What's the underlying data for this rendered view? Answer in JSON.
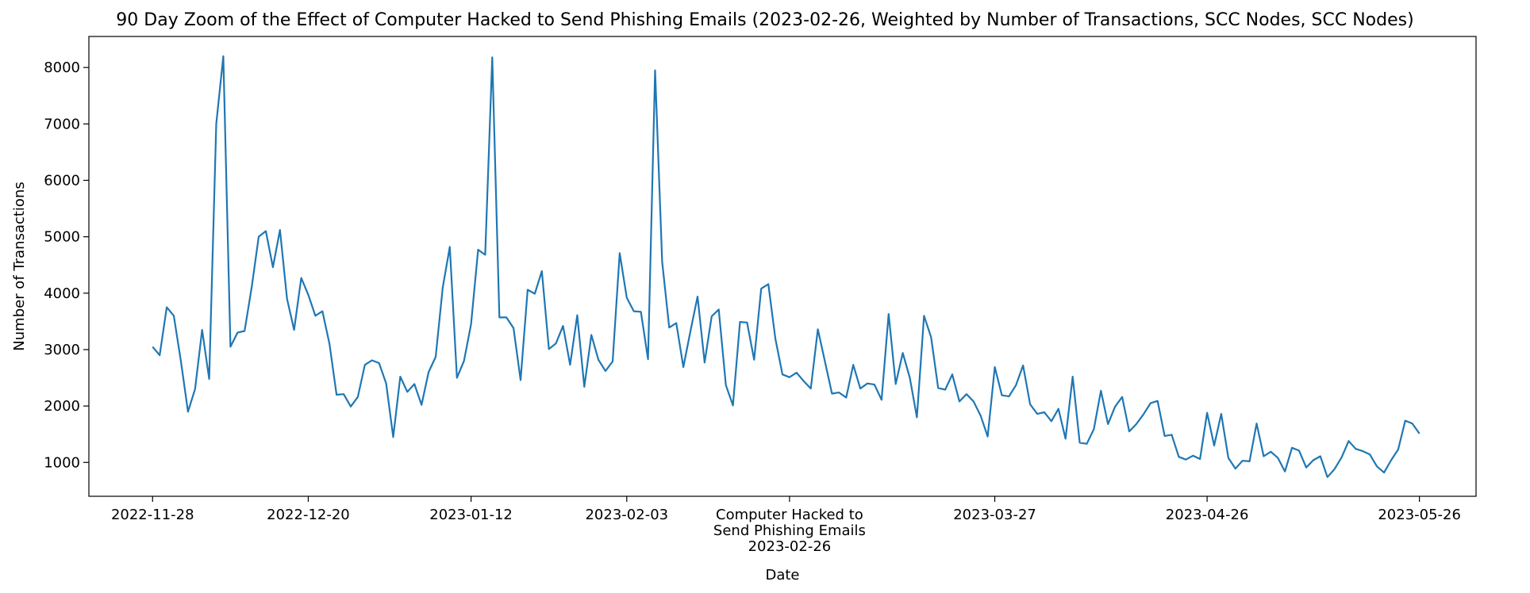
{
  "chart_data": {
    "type": "line",
    "title": "90 Day Zoom of the Effect of Computer Hacked to Send Phishing Emails (2023-02-26, Weighted by Number of Transactions, SCC Nodes, SCC Nodes)",
    "xlabel": "Date",
    "ylabel": "Number of Transactions",
    "x_tick_labels": [
      "2022-11-28",
      "2022-12-20",
      "2023-01-12",
      "2023-02-03",
      "2023-03-27",
      "2023-04-26",
      "2023-05-26"
    ],
    "event_tick_lines": [
      "Computer Hacked to",
      "Send Phishing Emails",
      "2023-02-26"
    ],
    "y_ticks": [
      1000,
      2000,
      3000,
      4000,
      5000,
      6000,
      7000,
      8000
    ],
    "ylim": [
      400,
      8550
    ],
    "xlim": [
      "2022-11-19",
      "2023-06-03"
    ],
    "grid": false,
    "line_color": "#1f77b4",
    "series": [
      {
        "x_start": "2022-11-28",
        "x_end": "2023-05-26",
        "values": [
          3050,
          2900,
          3750,
          3600,
          2800,
          1900,
          2300,
          3350,
          2480,
          7000,
          8200,
          3050,
          3300,
          3330,
          4100,
          5000,
          5100,
          4460,
          5120,
          3900,
          3350,
          4270,
          3970,
          3600,
          3680,
          3100,
          2200,
          2210,
          1990,
          2160,
          2730,
          2810,
          2760,
          2400,
          1450,
          2520,
          2250,
          2390,
          2020,
          2600,
          2870,
          4100,
          4820,
          2500,
          2800,
          3450,
          4770,
          4680,
          8180,
          3570,
          3570,
          3380,
          2460,
          4060,
          3990,
          4390,
          3010,
          3110,
          3420,
          2730,
          3610,
          2340,
          3260,
          2820,
          2620,
          2790,
          4710,
          3920,
          3680,
          3670,
          2830,
          7950,
          4560,
          3390,
          3470,
          2690,
          3330,
          3940,
          2770,
          3590,
          3710,
          2370,
          2010,
          3490,
          3480,
          2820,
          4080,
          4160,
          3190,
          2560,
          2510,
          2590,
          2440,
          2310,
          3360,
          2790,
          2220,
          2240,
          2150,
          2730,
          2310,
          2400,
          2380,
          2110,
          3630,
          2390,
          2940,
          2500,
          1800,
          3600,
          3220,
          2320,
          2290,
          2560,
          2080,
          2210,
          2080,
          1830,
          1460,
          2690,
          2190,
          2170,
          2370,
          2720,
          2030,
          1860,
          1890,
          1730,
          1950,
          1420,
          2520,
          1350,
          1330,
          1590,
          2270,
          1680,
          1990,
          2160,
          1550,
          1680,
          1850,
          2050,
          2090,
          1470,
          1490,
          1100,
          1050,
          1120,
          1060,
          1880,
          1300,
          1860,
          1080,
          890,
          1030,
          1020,
          1690,
          1110,
          1190,
          1080,
          840,
          1260,
          1210,
          910,
          1040,
          1110,
          740,
          880,
          1090,
          1380,
          1240,
          1200,
          1140,
          930,
          820,
          1040,
          1230,
          1740,
          1690,
          1510
        ]
      }
    ]
  }
}
